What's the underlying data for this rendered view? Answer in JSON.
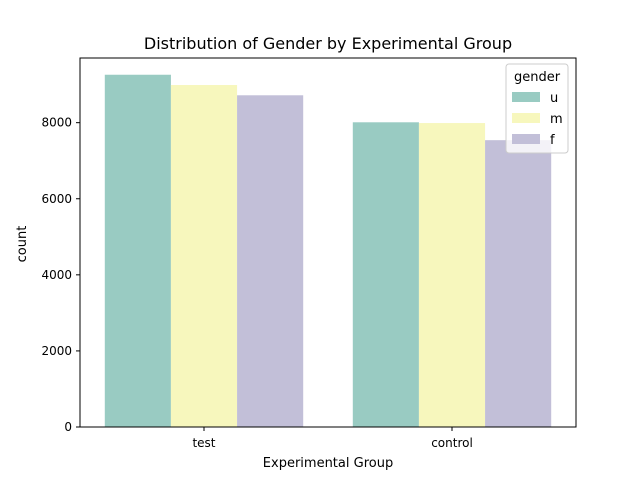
{
  "chart_data": {
    "type": "bar",
    "title": "Distribution of Gender by Experimental Group",
    "xlabel": "Experimental Group",
    "ylabel": "count",
    "categories": [
      "test",
      "control"
    ],
    "ylim": [
      0,
      9700
    ],
    "yticks": [
      0,
      2000,
      4000,
      6000,
      8000
    ],
    "grid": false,
    "legend": {
      "title": "gender",
      "placement": "top-right"
    },
    "series": [
      {
        "name": "u",
        "values": [
          9260,
          8010
        ],
        "color": "#99cbc2"
      },
      {
        "name": "m",
        "values": [
          8990,
          7990
        ],
        "color": "#f7f7bd"
      },
      {
        "name": "f",
        "values": [
          8720,
          7540
        ],
        "color": "#c2bfd8"
      }
    ]
  }
}
